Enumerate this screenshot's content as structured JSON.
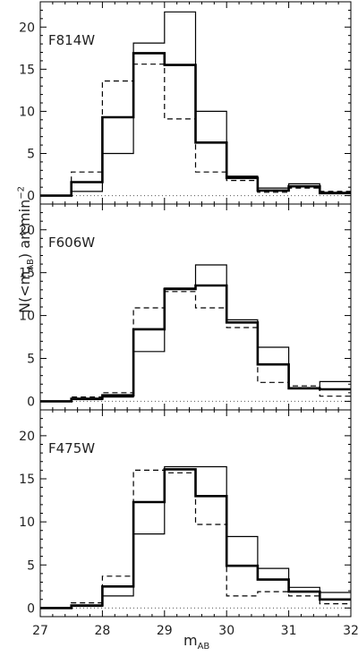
{
  "chart_data": [
    {
      "type": "step",
      "panel_label": "F814W",
      "x_edges": [
        27,
        27.5,
        28,
        28.5,
        29,
        29.5,
        30,
        30.5,
        31,
        31.5,
        32
      ],
      "series": [
        {
          "style": "thick",
          "values": [
            0,
            1.6,
            9.3,
            16.9,
            15.5,
            6.3,
            2.1,
            0.6,
            1.1,
            0.3
          ]
        },
        {
          "style": "thin",
          "values": [
            0,
            0.5,
            5.0,
            18.1,
            21.8,
            10.0,
            2.3,
            0.9,
            1.4,
            0.4
          ]
        },
        {
          "style": "dashed",
          "values": [
            0,
            2.8,
            13.6,
            15.6,
            9.1,
            2.8,
            1.8,
            0.4,
            0.9,
            0.5
          ]
        }
      ],
      "ylim": [
        -1,
        23
      ]
    },
    {
      "type": "step",
      "panel_label": "F606W",
      "x_edges": [
        27,
        27.5,
        28,
        28.5,
        29,
        29.5,
        30,
        30.5,
        31,
        31.5,
        32
      ],
      "series": [
        {
          "style": "thick",
          "values": [
            0,
            0.3,
            0.7,
            8.4,
            13.1,
            13.5,
            9.2,
            4.3,
            1.5,
            1.4
          ]
        },
        {
          "style": "thin",
          "values": [
            0,
            0.2,
            0.5,
            5.8,
            13.2,
            15.9,
            9.5,
            6.3,
            1.6,
            2.3
          ]
        },
        {
          "style": "dashed",
          "values": [
            0,
            0.5,
            1.0,
            10.9,
            12.8,
            10.9,
            8.6,
            2.2,
            1.8,
            0.6
          ]
        }
      ],
      "ylim": [
        -1,
        23
      ]
    },
    {
      "type": "step",
      "panel_label": "F475W",
      "x_edges": [
        27,
        27.5,
        28,
        28.5,
        29,
        29.5,
        30,
        30.5,
        31,
        31.5,
        32
      ],
      "series": [
        {
          "style": "thick",
          "values": [
            0,
            0.3,
            2.5,
            12.3,
            16.1,
            13.0,
            4.9,
            3.3,
            1.9,
            1.0
          ]
        },
        {
          "style": "thin",
          "values": [
            0,
            0.2,
            1.4,
            8.6,
            16.4,
            16.4,
            8.3,
            4.6,
            2.4,
            1.8
          ]
        },
        {
          "style": "dashed",
          "values": [
            0,
            0.6,
            3.7,
            16.0,
            15.7,
            9.7,
            1.4,
            1.9,
            1.4,
            0.5
          ]
        }
      ],
      "ylim": [
        -1,
        23
      ]
    }
  ],
  "axes": {
    "x_ticks": [
      "27",
      "28",
      "29",
      "30",
      "31",
      "32"
    ],
    "y_ticks": [
      "0",
      "5",
      "10",
      "15",
      "20"
    ],
    "ylabel_base": "N(<m",
    "ylabel_sub": "AB",
    "ylabel_mid": ")  arcmin",
    "ylabel_sup": "−2",
    "xlabel_base": "m",
    "xlabel_sub": "AB"
  }
}
